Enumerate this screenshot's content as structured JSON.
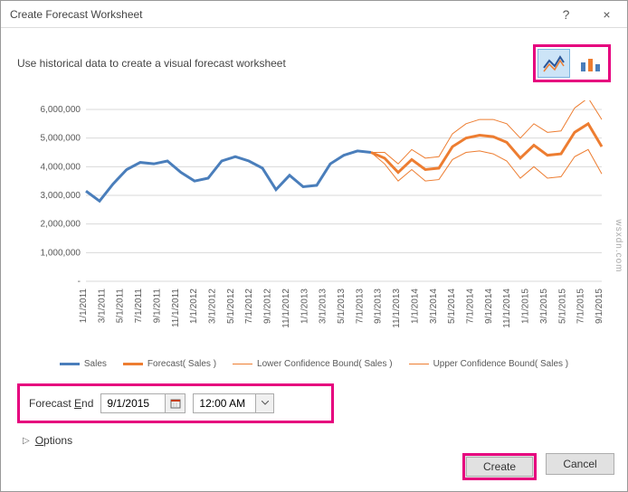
{
  "window": {
    "title": "Create Forecast Worksheet",
    "help": "?",
    "close": "×"
  },
  "instruction": "Use historical data to create a visual forecast worksheet",
  "chart_types": {
    "selected": "line"
  },
  "chart": {
    "type": "line",
    "background": "#ffffff",
    "grid_color": "#d9d9d9",
    "ylim": [
      0,
      6000000
    ],
    "ytick_step": 1000000,
    "yticks": [
      "-",
      "1,000,000",
      "2,000,000",
      "3,000,000",
      "4,000,000",
      "5,000,000",
      "6,000,000"
    ],
    "xticks": [
      "1/1/2011",
      "3/1/2011",
      "5/1/2011",
      "7/1/2011",
      "9/1/2011",
      "11/1/2011",
      "1/1/2012",
      "3/1/2012",
      "5/1/2012",
      "7/1/2012",
      "9/1/2012",
      "11/1/2012",
      "1/1/2013",
      "3/1/2013",
      "5/1/2013",
      "7/1/2013",
      "9/1/2013",
      "11/1/2013",
      "1/1/2014",
      "3/1/2014",
      "5/1/2014",
      "7/1/2014",
      "9/1/2014",
      "11/1/2014",
      "1/1/2015",
      "3/1/2015",
      "5/1/2015",
      "7/1/2015",
      "9/1/2015"
    ],
    "series": {
      "sales": {
        "label": "Sales",
        "color": "#4a7ebb",
        "width": 3,
        "values": [
          3150000,
          2800000,
          3400000,
          3900000,
          4150000,
          4100000,
          4200000,
          3800000,
          3500000,
          3600000,
          4200000,
          4350000,
          4200000,
          3950000,
          3200000,
          3700000,
          3300000,
          3350000,
          4100000,
          4400000,
          4550000,
          4500000
        ]
      },
      "forecast": {
        "label": "Forecast( Sales )",
        "color": "#ed7d31",
        "width": 3,
        "values": [
          4500000,
          4300000,
          3800000,
          4250000,
          3900000,
          3950000,
          4700000,
          5000000,
          5100000,
          5050000,
          4850000,
          4300000,
          4750000,
          4400000,
          4450000,
          5200000,
          5500000,
          4700000
        ]
      },
      "lower": {
        "label": "Lower Confidence Bound( Sales )",
        "color": "#ed7d31",
        "width": 1,
        "values": [
          4500000,
          4100000,
          3500000,
          3900000,
          3500000,
          3550000,
          4250000,
          4500000,
          4550000,
          4450000,
          4200000,
          3600000,
          4000000,
          3600000,
          3650000,
          4350000,
          4600000,
          3750000
        ]
      },
      "upper": {
        "label": "Upper Confidence Bound( Sales )",
        "color": "#ed7d31",
        "width": 1,
        "values": [
          4500000,
          4500000,
          4100000,
          4600000,
          4300000,
          4350000,
          5150000,
          5500000,
          5650000,
          5650000,
          5500000,
          5000000,
          5500000,
          5200000,
          5250000,
          6050000,
          6400000,
          5650000
        ]
      }
    },
    "forecast_start_index": 21
  },
  "forecast_end": {
    "label": "Forecast End",
    "date": "9/1/2015",
    "time": "12:00 AM"
  },
  "options_label": "Options",
  "buttons": {
    "create": "Create",
    "cancel": "Cancel"
  },
  "watermark": "wsxdn.com"
}
